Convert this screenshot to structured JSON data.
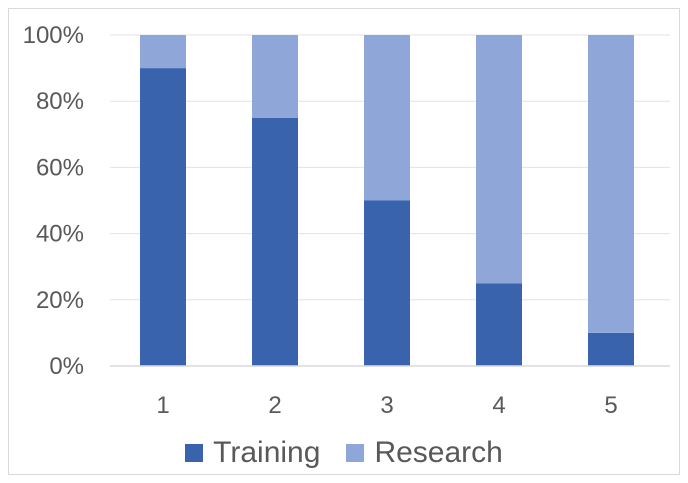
{
  "chart_data": {
    "type": "bar",
    "stacked": true,
    "categories": [
      "1",
      "2",
      "3",
      "4",
      "5"
    ],
    "series": [
      {
        "name": "Training",
        "color": "#3a63ad",
        "values": [
          90,
          75,
          50,
          25,
          10
        ]
      },
      {
        "name": "Research",
        "color": "#8fa6d8",
        "values": [
          10,
          25,
          50,
          75,
          90
        ]
      }
    ],
    "ylim": [
      0,
      100
    ],
    "yticks": [
      "0%",
      "20%",
      "40%",
      "60%",
      "80%",
      "100%"
    ],
    "grid": true,
    "legend_position": "bottom"
  }
}
